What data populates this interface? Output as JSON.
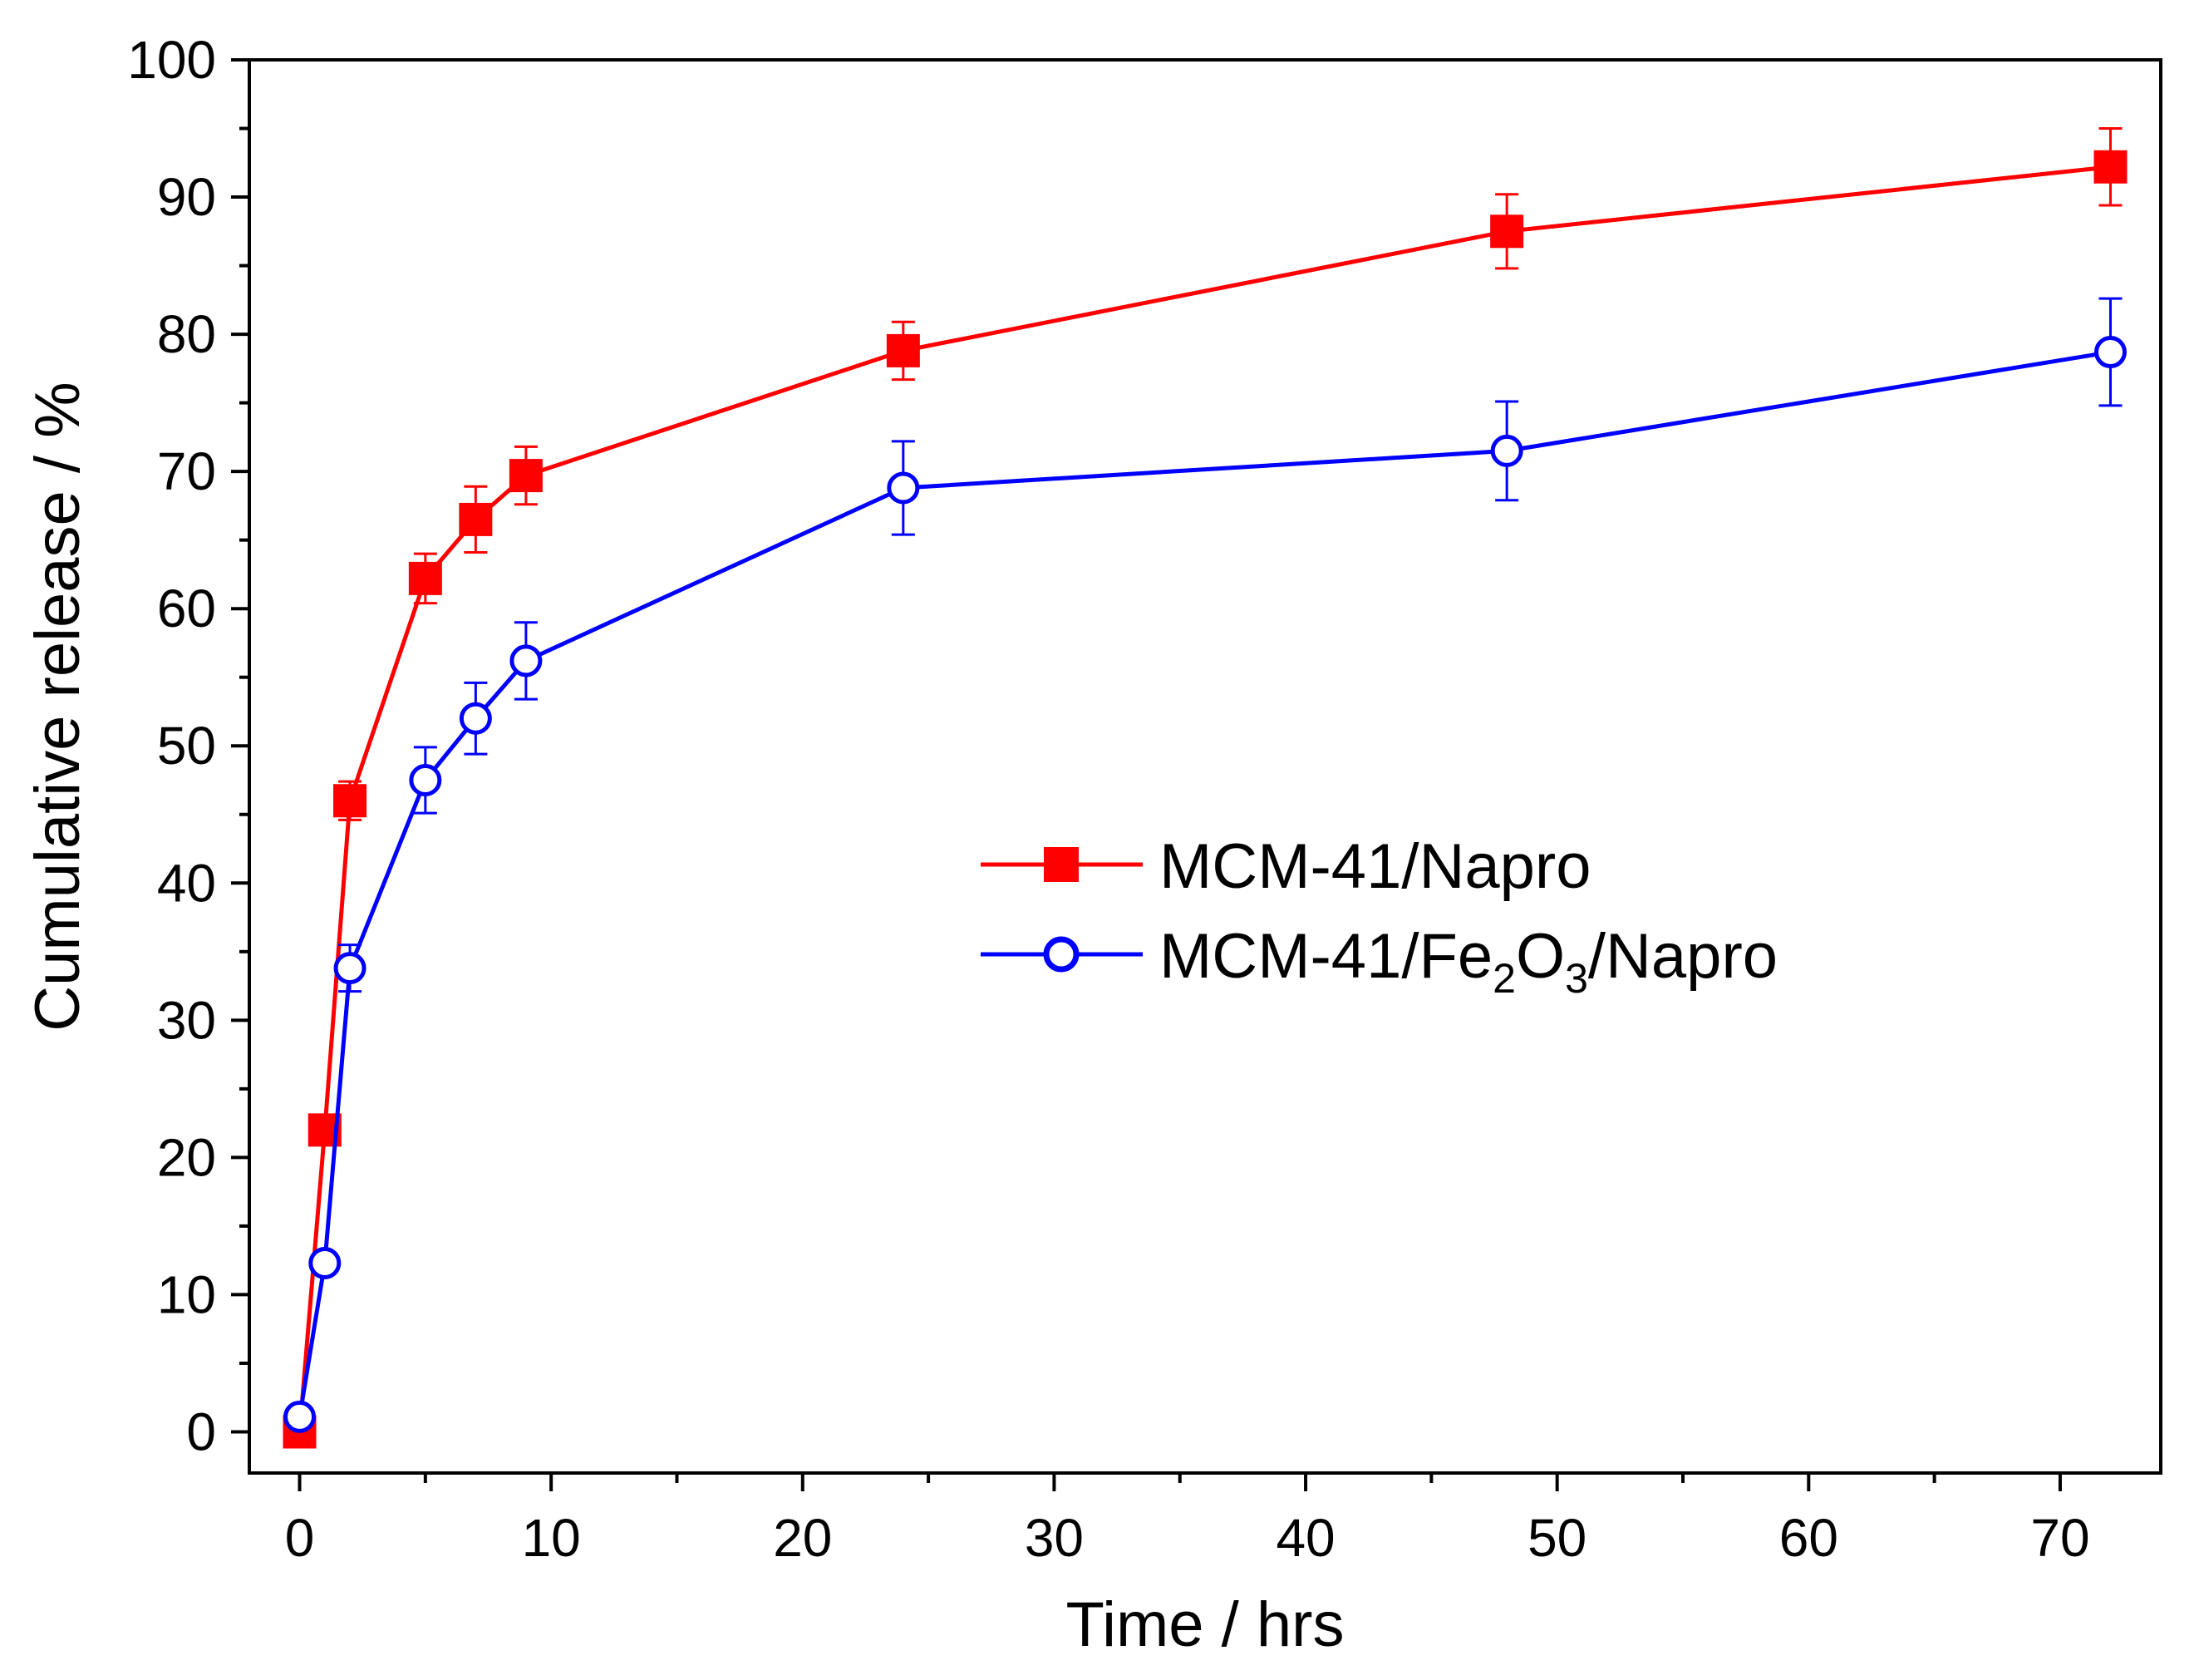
{
  "chart_data": {
    "type": "line",
    "title": "",
    "xlabel": "Time / hrs",
    "ylabel": "Cumulative release / %",
    "xlim": [
      -2,
      74
    ],
    "ylim": [
      -3,
      100
    ],
    "x_ticks": [
      0,
      10,
      20,
      30,
      40,
      50,
      60,
      70
    ],
    "y_ticks": [
      0,
      10,
      20,
      30,
      40,
      50,
      60,
      70,
      80,
      90,
      100
    ],
    "x_tick_labels": [
      "0",
      "10",
      "20",
      "30",
      "40",
      "50",
      "60",
      "70"
    ],
    "y_tick_labels": [
      "0",
      "10",
      "20",
      "30",
      "40",
      "50",
      "60",
      "70",
      "80",
      "90",
      "100"
    ],
    "legend_position": "center-right",
    "series": [
      {
        "name": "MCM-41/Napro",
        "label_main": "MCM-41/Napro",
        "label_parts": [],
        "color": "#ff0000",
        "marker": "filled-square",
        "x": [
          0,
          1,
          2,
          5,
          7,
          9,
          24,
          48,
          72
        ],
        "values": [
          0,
          22,
          46,
          62.2,
          66.5,
          69.7,
          78.8,
          87.5,
          92.2
        ],
        "errors": [
          0,
          0,
          1.4,
          1.8,
          2.4,
          2.1,
          2.1,
          2.7,
          2.8
        ]
      },
      {
        "name": "MCM-41/Fe2O3/Napro",
        "label_main": "MCM-41/Fe",
        "label_parts": [
          "2",
          "O",
          "3",
          "/Napro"
        ],
        "color": "#0000ff",
        "marker": "open-circle",
        "x": [
          0,
          1,
          2,
          5,
          7,
          9,
          24,
          48,
          72
        ],
        "values": [
          1.1,
          12.3,
          33.8,
          47.5,
          52,
          56.2,
          68.8,
          71.5,
          78.7
        ],
        "errors": [
          0,
          0,
          1.7,
          2.4,
          2.6,
          2.8,
          3.4,
          3.6,
          3.9
        ]
      }
    ]
  }
}
